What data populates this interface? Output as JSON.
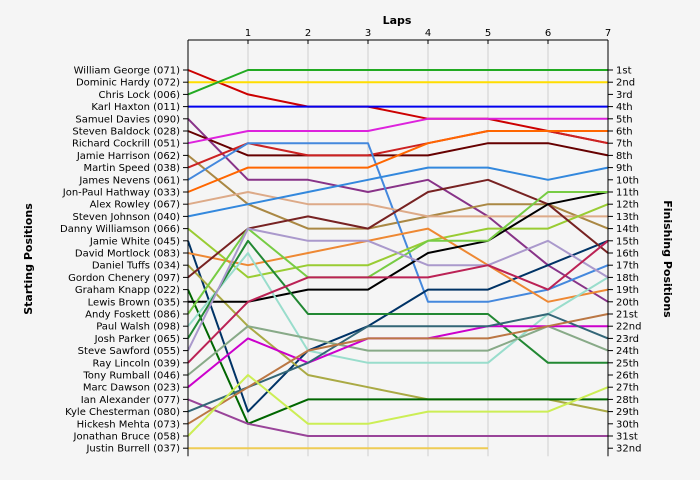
{
  "chart_data": {
    "type": "line",
    "title": "Laps",
    "ylabel_left": "Starting Positions",
    "ylabel_right": "Finishing Positions",
    "x_ticks": [
      "1",
      "2",
      "3",
      "4",
      "5",
      "6",
      "7"
    ],
    "x_range": [
      0,
      7
    ],
    "y_range": [
      1,
      32
    ],
    "grid": true,
    "start_labels": [
      "William George (071)",
      "Dominic Hardy (072)",
      "Chris Lock (006)",
      "Karl Haxton (011)",
      "Samuel Davies (090)",
      "Steven Baldock (028)",
      "Richard Cockrill (051)",
      "Jamie Harrison (062)",
      "Martin Speed (038)",
      "James Nevens (061)",
      "Jon-Paul Hathway (033)",
      "Alex Rowley (067)",
      "Steven Johnson (040)",
      "Danny Williamson (066)",
      "Jamie White (045)",
      "David Mortlock (083)",
      "Daniel Tuffs (034)",
      "Gordon Chenery (097)",
      "Graham Knapp (022)",
      "Lewis Brown (035)",
      "Andy Foskett (086)",
      "Paul Walsh (098)",
      "Josh Parker (065)",
      "Steve Sawford (055)",
      "Ray Lincoln (039)",
      "Tony Rumball (046)",
      "Marc Dawson (023)",
      "Ian Alexander (077)",
      "Kyle Chesterman (080)",
      "Hickesh Mehta (073)",
      "Jonathan Bruce (058)",
      "Justin Burrell (037)"
    ],
    "finish_labels": [
      "1st",
      "2nd",
      "3rd",
      "4th",
      "5th",
      "6th",
      "7th",
      "8th",
      "9th",
      "10th",
      "11th",
      "12th",
      "13th",
      "14th",
      "15th",
      "16th",
      "17th",
      "18th",
      "19th",
      "20th",
      "21st",
      "22nd",
      "23rd",
      "24th",
      "25th",
      "26th",
      "27th",
      "28th",
      "29th",
      "30th",
      "31st",
      "32nd"
    ],
    "series": [
      {
        "color": "#cc0000",
        "values": [
          1,
          3,
          4,
          4,
          5,
          5,
          6,
          7
        ]
      },
      {
        "color": "#ffdd00",
        "values": [
          2,
          2,
          2,
          2,
          2,
          2,
          2,
          2
        ]
      },
      {
        "color": "#22aa22",
        "values": [
          3,
          1,
          1,
          1,
          1,
          1,
          1,
          1
        ]
      },
      {
        "color": "#0000ee",
        "values": [
          4,
          4,
          4,
          4,
          4,
          4,
          4,
          4
        ]
      },
      {
        "color": "#883388",
        "values": [
          5,
          10,
          10,
          11,
          10,
          13,
          17,
          20
        ]
      },
      {
        "color": "#660000",
        "values": [
          6,
          8,
          8,
          8,
          8,
          7,
          7,
          8
        ]
      },
      {
        "color": "#dd22dd",
        "values": [
          7,
          6,
          6,
          6,
          5,
          5,
          5,
          5
        ]
      },
      {
        "color": "#aa8844",
        "values": [
          8,
          12,
          14,
          14,
          13,
          12,
          12,
          14
        ]
      },
      {
        "color": "#cc2222",
        "values": [
          9,
          7,
          8,
          8,
          7,
          6,
          6,
          7
        ]
      },
      {
        "color": "#4488dd",
        "values": [
          10,
          7,
          7,
          7,
          20,
          20,
          19,
          17
        ]
      },
      {
        "color": "#ff6600",
        "values": [
          11,
          9,
          9,
          9,
          7,
          6,
          6,
          6
        ]
      },
      {
        "color": "#ddaa88",
        "values": [
          12,
          11,
          12,
          12,
          13,
          13,
          13,
          13
        ]
      },
      {
        "color": "#3388dd",
        "values": [
          13,
          12,
          11,
          10,
          9,
          9,
          10,
          9
        ]
      },
      {
        "color": "#99cc33",
        "values": [
          14,
          18,
          17,
          17,
          15,
          14,
          14,
          12
        ]
      },
      {
        "color": "#003366",
        "values": [
          15,
          29,
          24,
          22,
          19,
          19,
          17,
          15
        ]
      },
      {
        "color": "#ee8833",
        "values": [
          16,
          17,
          16,
          15,
          14,
          17,
          20,
          19
        ]
      },
      {
        "color": "#aaaa44",
        "values": [
          17,
          22,
          26,
          27,
          28,
          28,
          28,
          29
        ]
      },
      {
        "color": "#772222",
        "values": [
          18,
          14,
          13,
          14,
          11,
          10,
          12,
          16
        ]
      },
      {
        "color": "#006600",
        "values": [
          19,
          30,
          28,
          28,
          28,
          28,
          28,
          28
        ]
      },
      {
        "color": "#000000",
        "values": [
          20,
          20,
          19,
          19,
          16,
          15,
          12,
          11
        ]
      },
      {
        "color": "#77cc44",
        "values": [
          21,
          14,
          18,
          18,
          15,
          15,
          11,
          11
        ]
      },
      {
        "color": "#99ddcc",
        "values": [
          22,
          16,
          24,
          25,
          25,
          25,
          21,
          18
        ]
      },
      {
        "color": "#228833",
        "values": [
          23,
          15,
          21,
          21,
          21,
          21,
          25,
          25
        ]
      },
      {
        "color": "#aa99cc",
        "values": [
          24,
          14,
          15,
          15,
          17,
          17,
          15,
          18
        ]
      },
      {
        "color": "#bb2255",
        "values": [
          25,
          20,
          18,
          18,
          18,
          17,
          19,
          15
        ]
      },
      {
        "color": "#88aa88",
        "values": [
          26,
          22,
          23,
          24,
          24,
          24,
          22,
          24
        ]
      },
      {
        "color": "#cc00cc",
        "values": [
          27,
          23,
          25,
          23,
          23,
          22,
          22,
          22
        ]
      },
      {
        "color": "#994499",
        "values": [
          28,
          30,
          31,
          31,
          31,
          31,
          31,
          31
        ]
      },
      {
        "color": "#336677",
        "values": [
          29,
          27,
          25,
          22,
          22,
          22,
          21,
          23
        ]
      },
      {
        "color": "#bb7744",
        "values": [
          30,
          27,
          24,
          23,
          23,
          23,
          22,
          21
        ]
      },
      {
        "color": "#ccee55",
        "values": [
          31,
          26,
          30,
          30,
          29,
          29,
          29,
          27
        ]
      },
      {
        "color": "#eecc55",
        "values": [
          32,
          32,
          32,
          32,
          32,
          32
        ]
      }
    ]
  }
}
